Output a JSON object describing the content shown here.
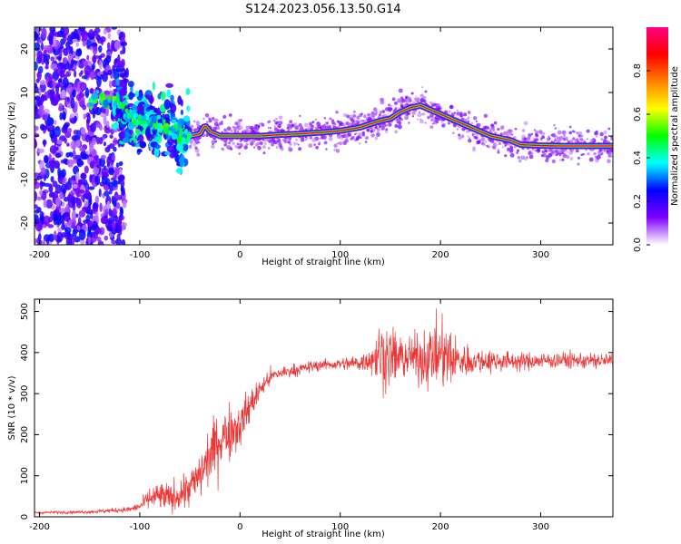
{
  "title": "S124.2023.056.13.50.G14",
  "chart_data": [
    {
      "type": "heatmap",
      "xlabel": "Height of straight line (km)",
      "ylabel": "Frequency (Hz)",
      "xlim": [
        -205,
        372
      ],
      "ylim": [
        -25,
        25
      ],
      "xticks": [
        -200,
        -100,
        0,
        100,
        200,
        300
      ],
      "yticks": [
        -20,
        -10,
        0,
        10,
        20
      ],
      "ridge": {
        "x": [
          -150,
          -130,
          -120,
          -110,
          -100,
          -90,
          -80,
          -70,
          -60,
          -50,
          -40,
          -35,
          -30,
          -20,
          0,
          20,
          40,
          60,
          80,
          100,
          120,
          140,
          150,
          160,
          170,
          180,
          190,
          200,
          210,
          220,
          230,
          240,
          250,
          260,
          270,
          280,
          300,
          320,
          340,
          372
        ],
        "y": [
          8.5,
          8,
          7.5,
          5,
          3,
          3,
          2,
          2,
          0.5,
          0,
          0.5,
          2.5,
          1,
          0,
          0,
          0,
          0.3,
          0.5,
          0.8,
          1.2,
          2,
          3.5,
          4,
          5.5,
          6.5,
          7,
          6,
          5,
          4,
          3,
          2,
          1,
          0,
          -0.5,
          -1,
          -2,
          -2.2,
          -2.3,
          -2.3,
          -2.3
        ]
      },
      "colorbar": {
        "label": "Normalized spectral amplitude",
        "ticks": [
          0.0,
          0.2,
          0.4,
          0.6,
          0.8
        ],
        "range": [
          0,
          1
        ],
        "colormap": [
          "#ffffff",
          "#7f00ff",
          "#0000ff",
          "#00ffff",
          "#00ff00",
          "#ffff00",
          "#ff8000",
          "#ff0000",
          "#ff0080"
        ]
      }
    },
    {
      "type": "line",
      "xlabel": "Height of straight line (km)",
      "ylabel": "SNR (10 * v/v)",
      "xlim": [
        -205,
        372
      ],
      "ylim": [
        0,
        530
      ],
      "xticks": [
        -200,
        -100,
        0,
        100,
        200,
        300
      ],
      "yticks": [
        0,
        100,
        200,
        300,
        400,
        500
      ],
      "color": "#ee3333",
      "series": [
        {
          "x": [
            -205,
            -150,
            -110,
            -100,
            -90,
            -80,
            -70,
            -60,
            -50,
            -40,
            -30,
            -20,
            -10,
            0,
            10,
            20,
            30,
            40,
            60,
            80,
            100,
            120,
            130,
            140,
            150,
            160,
            170,
            180,
            190,
            200,
            210,
            220,
            240,
            260,
            280,
            300,
            320,
            340,
            372
          ],
          "y": [
            10,
            12,
            18,
            25,
            45,
            50,
            45,
            55,
            70,
            100,
            150,
            190,
            210,
            225,
            270,
            310,
            340,
            350,
            360,
            370,
            372,
            375,
            385,
            395,
            390,
            385,
            390,
            385,
            390,
            395,
            385,
            380,
            380,
            380,
            378,
            380,
            382,
            380,
            380
          ],
          "noise": [
            2,
            3,
            5,
            8,
            20,
            25,
            25,
            28,
            35,
            40,
            50,
            55,
            50,
            40,
            30,
            20,
            15,
            12,
            10,
            10,
            10,
            15,
            25,
            60,
            50,
            45,
            35,
            45,
            55,
            60,
            55,
            30,
            22,
            18,
            15,
            15,
            14,
            14,
            14
          ]
        }
      ]
    }
  ]
}
